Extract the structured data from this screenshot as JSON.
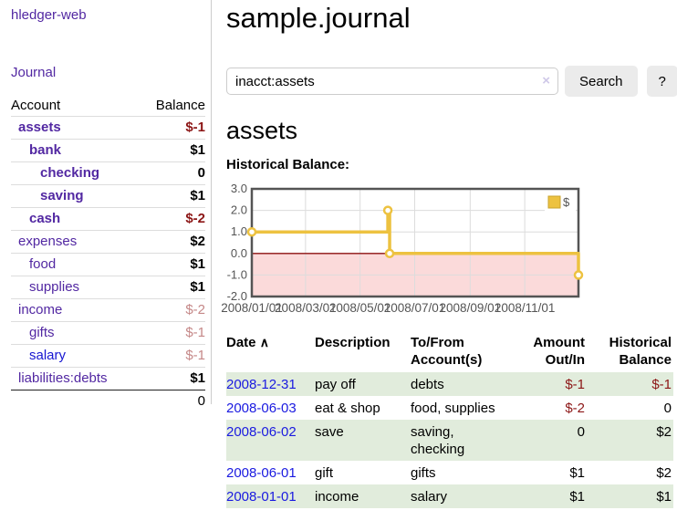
{
  "sidebar": {
    "brand": "hledger-web",
    "journal_link": "Journal",
    "accounts_table": {
      "headers": {
        "account": "Account",
        "balance": "Balance"
      },
      "rows": [
        {
          "name": "assets",
          "balance": "$-1",
          "level": 1,
          "bold": true,
          "balance_style": "neg-strong"
        },
        {
          "name": "bank",
          "balance": "$1",
          "level": 2,
          "bold": true,
          "balance_style": "normal"
        },
        {
          "name": "checking",
          "balance": "0",
          "level": 3,
          "bold": true,
          "balance_style": "normal"
        },
        {
          "name": "saving",
          "balance": "$1",
          "level": 3,
          "bold": true,
          "balance_style": "normal"
        },
        {
          "name": "cash",
          "balance": "$-2",
          "level": 2,
          "bold": true,
          "balance_style": "neg-strong"
        },
        {
          "name": "expenses",
          "balance": "$2",
          "level": 1,
          "bold": false,
          "balance_style": "normal"
        },
        {
          "name": "food",
          "balance": "$1",
          "level": 2,
          "bold": false,
          "balance_style": "normal"
        },
        {
          "name": "supplies",
          "balance": "$1",
          "level": 2,
          "bold": false,
          "balance_style": "normal"
        },
        {
          "name": "income",
          "balance": "$-2",
          "level": 1,
          "bold": false,
          "balance_style": "neg-soft"
        },
        {
          "name": "gifts",
          "balance": "$-1",
          "level": 2,
          "bold": false,
          "balance_style": "neg-soft"
        },
        {
          "name": "salary",
          "balance": "$-1",
          "level": 2,
          "bold": false,
          "balance_style": "neg-soft",
          "unvisited": true
        },
        {
          "name": "liabilities:debts",
          "balance": "$1",
          "level": 1,
          "bold": false,
          "balance_style": "normal"
        }
      ],
      "total": "0"
    }
  },
  "main": {
    "title": "sample.journal",
    "search": {
      "value": "inacct:assets",
      "clear_icon": "×",
      "button_label": "Search",
      "help_label": "?"
    },
    "account_heading": "assets",
    "chart_heading": "Historical Balance:",
    "register": {
      "headers": {
        "date": "Date",
        "description": "Description",
        "accounts": "To/From Account(s)",
        "amount": "Amount Out/In",
        "balance": "Historical Balance"
      },
      "sort_icon": "∧",
      "rows": [
        {
          "date": "2008-12-31",
          "description": "pay off",
          "accounts": "debts",
          "amount": "$-1",
          "balance": "$-1"
        },
        {
          "date": "2008-06-03",
          "description": "eat & shop",
          "accounts": "food, supplies",
          "amount": "$-2",
          "balance": "0"
        },
        {
          "date": "2008-06-02",
          "description": "save",
          "accounts": "saving, checking",
          "amount": "0",
          "balance": "$2"
        },
        {
          "date": "2008-06-01",
          "description": "gift",
          "accounts": "gifts",
          "amount": "$1",
          "balance": "$2"
        },
        {
          "date": "2008-01-01",
          "description": "income",
          "accounts": "salary",
          "amount": "$1",
          "balance": "$1"
        }
      ]
    }
  },
  "chart_data": {
    "type": "line",
    "title": "Historical Balance:",
    "step": true,
    "series": [
      {
        "name": "$",
        "color": "#edc240",
        "points": [
          [
            "2008-01-01",
            1.0
          ],
          [
            "2008-06-01",
            2.0
          ],
          [
            "2008-06-03",
            0.0
          ],
          [
            "2008-12-31",
            -1.0
          ]
        ]
      }
    ],
    "x_range": [
      "2008-01-01",
      "2008-12-31"
    ],
    "x_ticks": [
      "2008/01/01",
      "2008/03/01",
      "2008/05/01",
      "2008/07/01",
      "2008/09/01",
      "2008/11/01"
    ],
    "y_ticks": [
      3.0,
      2.0,
      1.0,
      0.0,
      -1.0,
      -2.0
    ],
    "ylim": [
      -2.0,
      3.0
    ],
    "grid": true,
    "legend_position": "top-right",
    "negative_region_color": "#fbdada",
    "zero_line_color": "#8c1010"
  }
}
